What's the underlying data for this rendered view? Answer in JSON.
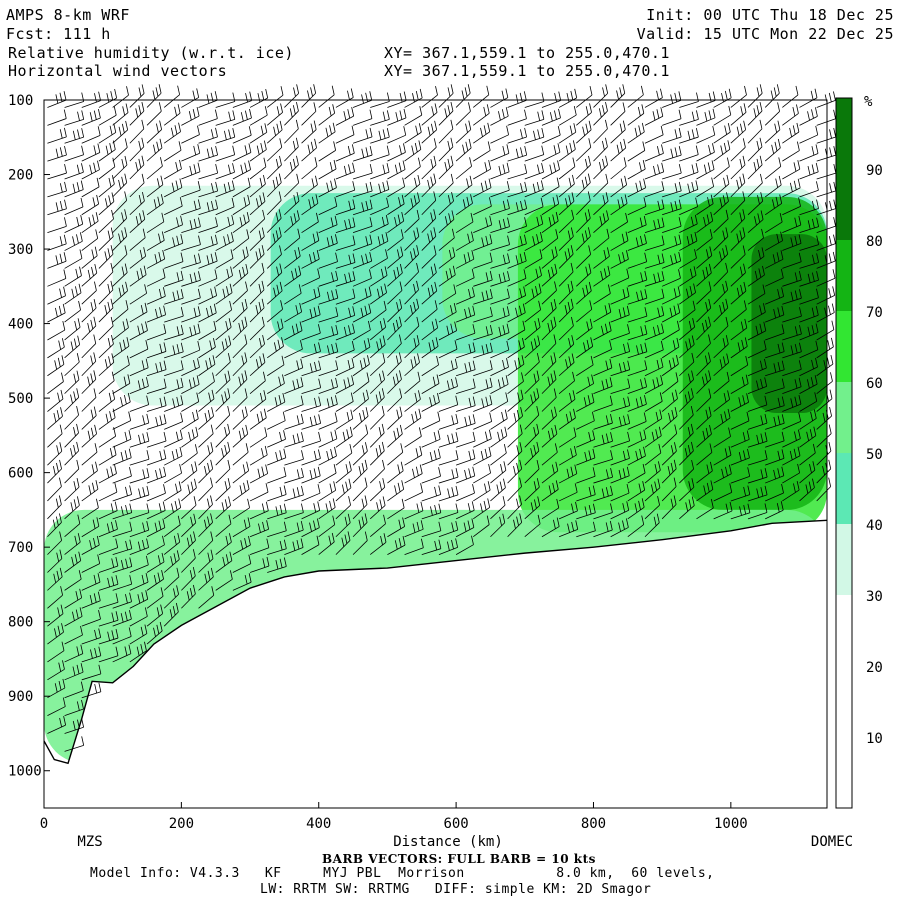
{
  "header": {
    "model": "AMPS 8-km WRF",
    "fcst": "Fcst: 111 h",
    "init": "Init: 00 UTC Thu 18 Dec 25",
    "valid": "Valid: 15 UTC Mon 22 Dec 25",
    "field1": "Relative humidity (w.r.t. ice)",
    "field2": "Horizontal wind vectors",
    "xy1": "XY= 367.1,559.1 to 255.0,470.1",
    "xy2": "XY= 367.1,559.1 to 255.0,470.1"
  },
  "footer": {
    "barb": "BARB VECTORS: FULL BARB = 10 kts",
    "model_info": "Model Info: V4.3.3   KF     MYJ PBL  Morrison           8.0 km,  60 levels,",
    "physics": "LW: RRTM SW: RRTMG   DIFF: simple KM: 2D Smagor"
  },
  "colorbar": {
    "unit": "%",
    "labels": [
      "10",
      "20",
      "30",
      "40",
      "50",
      "60",
      "70",
      "80",
      "90"
    ],
    "colors": [
      "#ffffff",
      "#ffffff",
      "#ffffff",
      "#d2f8e6",
      "#5ce8b4",
      "#72f08c",
      "#32e632",
      "#14b414",
      "#0a780a"
    ]
  },
  "chart_data": {
    "type": "heatmap",
    "title": "Relative humidity (w.r.t. ice); Horizontal wind vectors",
    "xlabel": "Distance (km)",
    "ylabel": "",
    "xlim": [
      0,
      1140
    ],
    "ylim_pressure_hPa": [
      1050,
      100
    ],
    "x_ticks": [
      "0",
      "200",
      "400",
      "600",
      "800",
      "1000"
    ],
    "y_ticks": [
      "100",
      "200",
      "300",
      "400",
      "500",
      "600",
      "700",
      "800",
      "900",
      "1000"
    ],
    "x_tick_values": [
      0,
      200,
      400,
      600,
      800,
      1000
    ],
    "y_tick_values": [
      100,
      200,
      300,
      400,
      500,
      600,
      700,
      800,
      900,
      1000
    ],
    "endpoints": {
      "left": "MZS",
      "right": "DOMEC"
    },
    "terrain_surface_pressure": [
      {
        "x": 0,
        "p": 960
      },
      {
        "x": 15,
        "p": 985
      },
      {
        "x": 35,
        "p": 990
      },
      {
        "x": 55,
        "p": 930
      },
      {
        "x": 70,
        "p": 880
      },
      {
        "x": 100,
        "p": 882
      },
      {
        "x": 130,
        "p": 860
      },
      {
        "x": 160,
        "p": 830
      },
      {
        "x": 200,
        "p": 805
      },
      {
        "x": 250,
        "p": 780
      },
      {
        "x": 300,
        "p": 755
      },
      {
        "x": 350,
        "p": 740
      },
      {
        "x": 400,
        "p": 732
      },
      {
        "x": 500,
        "p": 728
      },
      {
        "x": 600,
        "p": 718
      },
      {
        "x": 700,
        "p": 708
      },
      {
        "x": 800,
        "p": 700
      },
      {
        "x": 900,
        "p": 690
      },
      {
        "x": 1000,
        "p": 678
      },
      {
        "x": 1060,
        "p": 668
      },
      {
        "x": 1140,
        "p": 664
      }
    ],
    "rh_regions": [
      {
        "level": "30-40",
        "x": [
          100,
          1140
        ],
        "p": [
          215,
          510
        ]
      },
      {
        "level": "40-50",
        "x": [
          330,
          1140
        ],
        "p": [
          225,
          440
        ]
      },
      {
        "level": "50-60",
        "x": [
          580,
          1140
        ],
        "p": [
          240,
          420
        ]
      },
      {
        "level": "60-70",
        "x": [
          690,
          1140
        ],
        "p": [
          240,
          680
        ]
      },
      {
        "level": "70-80",
        "x": [
          930,
          1140
        ],
        "p": [
          230,
          650
        ]
      },
      {
        "level": "80-90",
        "x": [
          1030,
          1140
        ],
        "p": [
          280,
          520
        ]
      },
      {
        "level": "40-70 near-surface",
        "x": [
          0,
          1140
        ],
        "p": [
          650,
          990
        ]
      }
    ],
    "barb_columns_x_km": [
      5,
      30,
      55,
      80,
      100,
      125,
      150,
      175,
      200,
      225,
      250,
      275,
      300,
      325,
      350,
      375,
      400,
      425,
      450,
      475,
      500,
      525,
      550,
      575,
      600,
      625,
      650,
      675,
      700,
      725,
      750,
      775,
      800,
      825,
      850,
      875,
      900,
      925,
      950,
      975,
      1000,
      1025,
      1050,
      1075,
      1100,
      1125
    ]
  }
}
